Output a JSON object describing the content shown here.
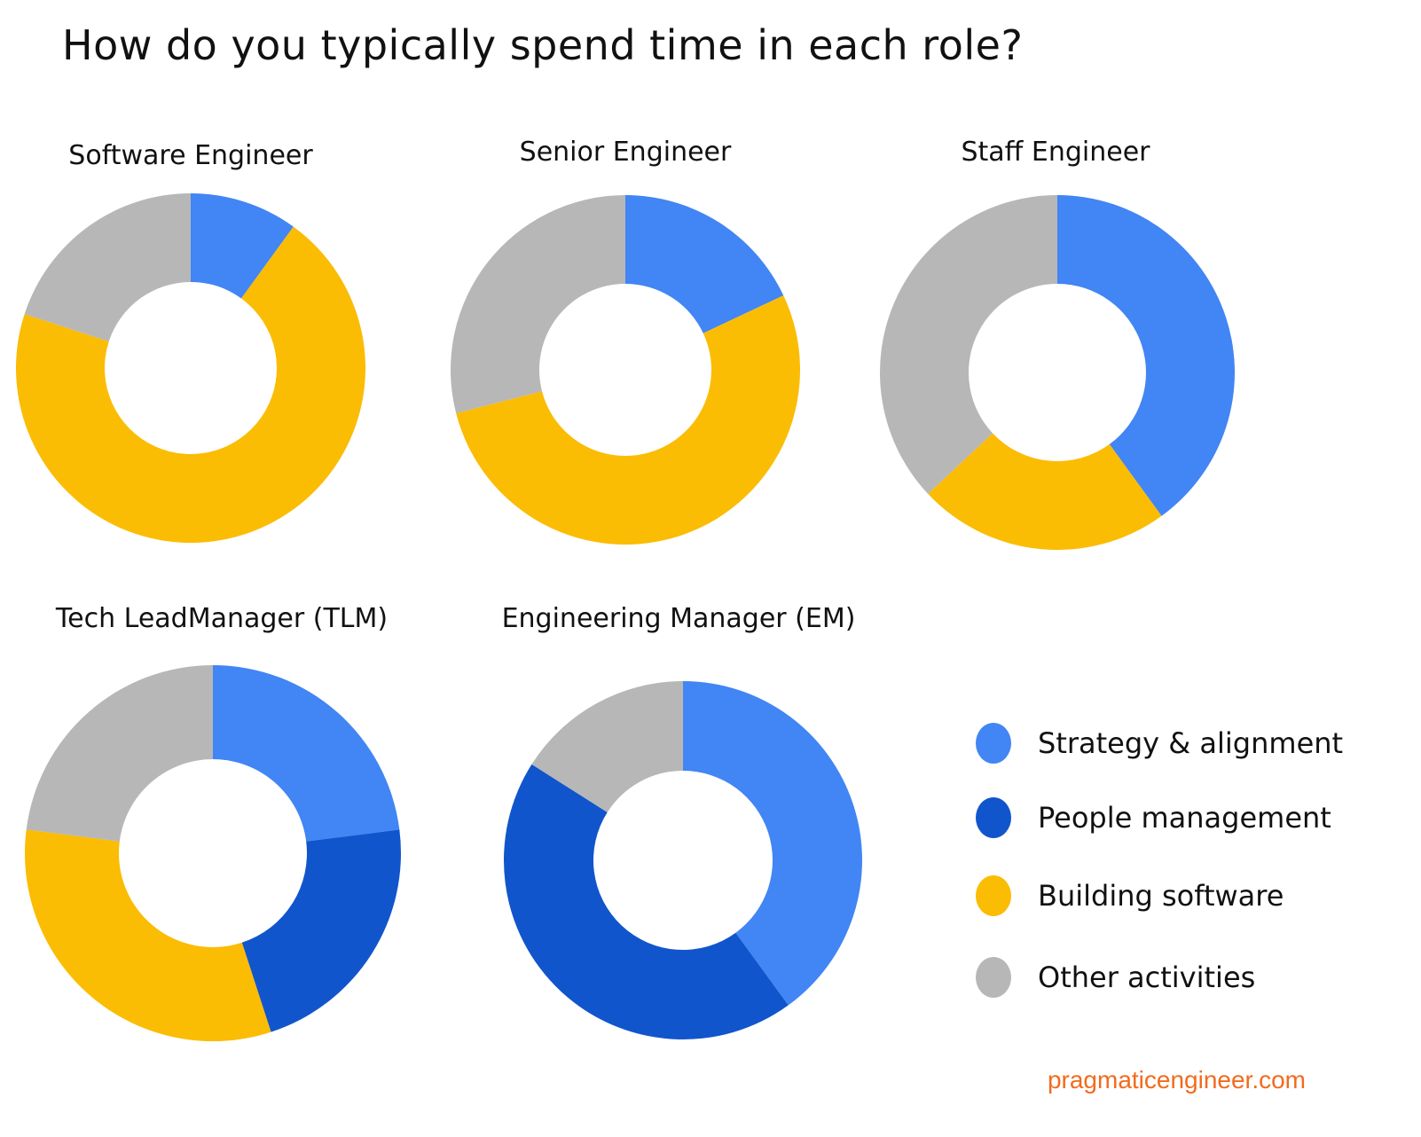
{
  "title": "How do you typically spend time in each role?",
  "source": "pragmaticengineer.com",
  "legend": [
    {
      "label": "Strategy & alignment",
      "color": "#4285f4"
    },
    {
      "label": "People management",
      "color": "#1155cc"
    },
    {
      "label": "Building software",
      "color": "#fbbc04"
    },
    {
      "label": "Other activities",
      "color": "#b7b7b7"
    }
  ],
  "chart_data": [
    {
      "type": "pie",
      "title": "Software Engineer",
      "series": [
        {
          "name": "Strategy & alignment",
          "value": 10,
          "color": "#4285f4"
        },
        {
          "name": "Building software",
          "value": 70,
          "color": "#fbbc04"
        },
        {
          "name": "Other activities",
          "value": 20,
          "color": "#b7b7b7"
        }
      ]
    },
    {
      "type": "pie",
      "title": "Senior Engineer",
      "series": [
        {
          "name": "Strategy & alignment",
          "value": 18,
          "color": "#4285f4"
        },
        {
          "name": "Building software",
          "value": 53,
          "color": "#fbbc04"
        },
        {
          "name": "Other activities",
          "value": 29,
          "color": "#b7b7b7"
        }
      ]
    },
    {
      "type": "pie",
      "title": "Staff Engineer",
      "series": [
        {
          "name": "Strategy & alignment",
          "value": 40,
          "color": "#4285f4"
        },
        {
          "name": "Building software",
          "value": 23,
          "color": "#fbbc04"
        },
        {
          "name": "Other activities",
          "value": 37,
          "color": "#b7b7b7"
        }
      ]
    },
    {
      "type": "pie",
      "title": "Tech LeadManager (TLM)",
      "series": [
        {
          "name": "Strategy & alignment",
          "value": 23,
          "color": "#4285f4"
        },
        {
          "name": "People management",
          "value": 22,
          "color": "#1155cc"
        },
        {
          "name": "Building software",
          "value": 32,
          "color": "#fbbc04"
        },
        {
          "name": "Other activities",
          "value": 23,
          "color": "#b7b7b7"
        }
      ]
    },
    {
      "type": "pie",
      "title": "Engineering Manager (EM)",
      "series": [
        {
          "name": "Strategy & alignment",
          "value": 40,
          "color": "#4285f4"
        },
        {
          "name": "People management",
          "value": 44,
          "color": "#1155cc"
        },
        {
          "name": "Other activities",
          "value": 16,
          "color": "#b7b7b7"
        }
      ]
    }
  ]
}
